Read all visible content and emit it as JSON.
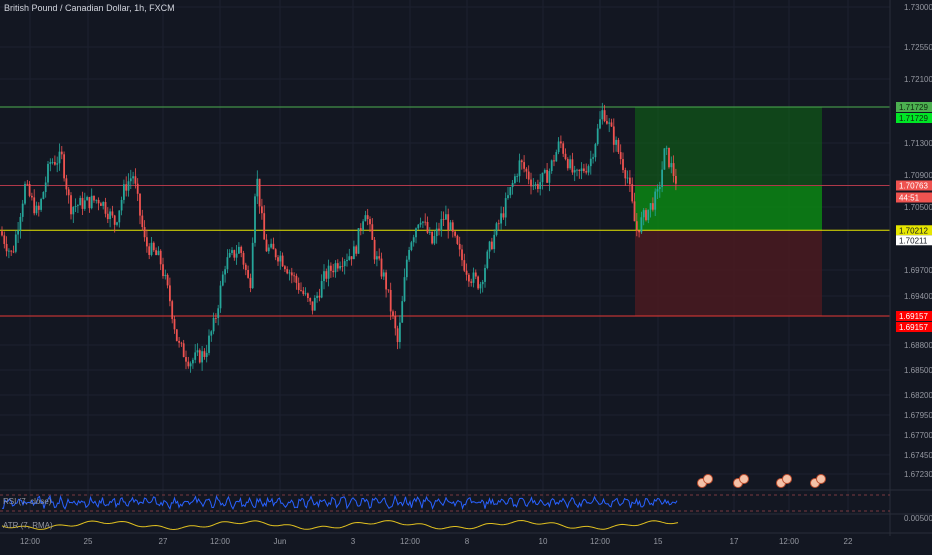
{
  "header": {
    "symbol_title": "British Pound / Canadian Dollar, 1h, FXCM"
  },
  "colors": {
    "background": "#131722",
    "bull": "#26a69a",
    "bear": "#ef5350",
    "target_line": "#4caf50",
    "stop_line": "#e53935",
    "entry_line": "#e6e600",
    "profit_zone": "#0f6b14",
    "loss_zone": "#4a1a20",
    "rsi_line": "#2962ff",
    "atr_line": "#e0c020"
  },
  "indicators": {
    "rsi_label": "RSI (7, close)",
    "atr_label": "ATR (7, RMA)",
    "atr_axis_value": "0.00500"
  },
  "chart_data": {
    "type": "candlestick",
    "instrument": "British Pound / Canadian Dollar",
    "timeframe": "1h",
    "source": "FXCM",
    "y_ticks": [
      "1.73000",
      "1.72550",
      "1.72100",
      "1.71300",
      "1.70900",
      "1.70500",
      "1.69700",
      "1.69400",
      "1.68800",
      "1.68500",
      "1.68200",
      "1.67950",
      "1.67700",
      "1.67450",
      "1.67230"
    ],
    "x_ticks": [
      "12:00",
      "25",
      "27",
      "12:00",
      "Jun",
      "3",
      "12:00",
      "8",
      "10",
      "12:00",
      "15",
      "17",
      "12:00",
      "22"
    ],
    "levels": [
      {
        "name": "target",
        "labels": [
          "1.71729",
          "1.71729"
        ],
        "value": 1.71729
      },
      {
        "name": "current_price",
        "labels": [
          "1.70763",
          "44:51"
        ],
        "value": 1.70763
      },
      {
        "name": "entry",
        "labels": [
          "1.70212",
          "1.70211"
        ],
        "value": 1.70212
      },
      {
        "name": "stop",
        "labels": [
          "1.69157",
          "1.69157"
        ],
        "value": 1.69157
      }
    ],
    "close_path": [
      [
        0,
        1.702
      ],
      [
        12,
        1.699
      ],
      [
        25,
        1.7075
      ],
      [
        38,
        1.704
      ],
      [
        50,
        1.7105
      ],
      [
        62,
        1.711
      ],
      [
        70,
        1.705
      ],
      [
        85,
        1.7055
      ],
      [
        100,
        1.706
      ],
      [
        115,
        1.703
      ],
      [
        125,
        1.7075
      ],
      [
        133,
        1.709
      ],
      [
        145,
        1.7005
      ],
      [
        160,
        1.6985
      ],
      [
        170,
        1.6935
      ],
      [
        178,
        1.688
      ],
      [
        190,
        1.686
      ],
      [
        205,
        1.687
      ],
      [
        215,
        1.691
      ],
      [
        225,
        1.698
      ],
      [
        240,
        1.7
      ],
      [
        250,
        1.695
      ],
      [
        256,
        1.7095
      ],
      [
        265,
        1.7
      ],
      [
        280,
        1.699
      ],
      [
        295,
        1.696
      ],
      [
        312,
        1.6925
      ],
      [
        325,
        1.6965
      ],
      [
        340,
        1.6985
      ],
      [
        355,
        1.6995
      ],
      [
        365,
        1.705
      ],
      [
        375,
        1.699
      ],
      [
        385,
        1.696
      ],
      [
        398,
        1.688
      ],
      [
        408,
        1.7
      ],
      [
        420,
        1.704
      ],
      [
        432,
        1.7005
      ],
      [
        445,
        1.704
      ],
      [
        460,
        1.699
      ],
      [
        470,
        1.6965
      ],
      [
        480,
        1.6955
      ],
      [
        490,
        1.7
      ],
      [
        505,
        1.705
      ],
      [
        520,
        1.7105
      ],
      [
        535,
        1.7075
      ],
      [
        548,
        1.709
      ],
      [
        560,
        1.713
      ],
      [
        575,
        1.7085
      ],
      [
        590,
        1.7105
      ],
      [
        603,
        1.717
      ],
      [
        615,
        1.713
      ],
      [
        628,
        1.7085
      ],
      [
        636,
        1.702
      ],
      [
        645,
        1.704
      ],
      [
        658,
        1.7065
      ],
      [
        665,
        1.712
      ],
      [
        678,
        1.7076
      ]
    ],
    "volatility": 0.0012
  }
}
